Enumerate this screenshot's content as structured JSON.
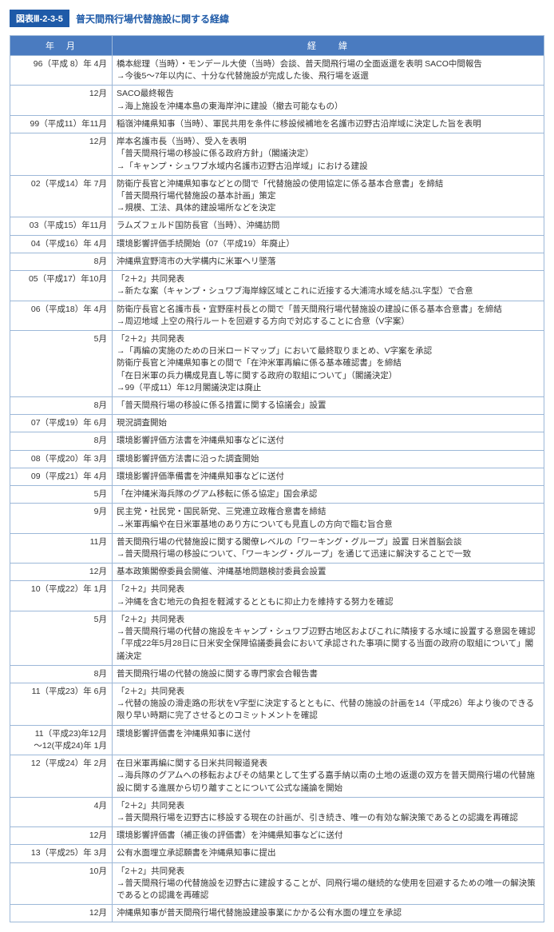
{
  "title_badge": "図表Ⅲ-2-3-5",
  "title_text": "普天間飛行場代替施設に関する経緯",
  "headers": {
    "date": "年　月",
    "content": "経　　緯"
  },
  "rows": [
    {
      "date": "96（平成 8）年 4月",
      "lines": [
        "橋本総理（当時）・モンデール大使（当時）会談、普天間飛行場の全面返還を表明 SACO中間報告",
        "→今後5～7年以内に、十分な代替施設が完成した後、飛行場を返還"
      ]
    },
    {
      "date": "12月",
      "lines": [
        "SACO最終報告",
        "→海上施設を沖縄本島の東海岸沖に建設（撤去可能なもの）"
      ]
    },
    {
      "date": "99（平成11）年11月",
      "lines": [
        "稲嶺沖縄県知事（当時）、軍民共用を条件に移設候補地を名護市辺野古沿岸域に決定した旨を表明"
      ]
    },
    {
      "date": "12月",
      "lines": [
        "岸本名護市長（当時）、受入を表明",
        "「普天間飛行場の移設に係る政府方針」（閣議決定）",
        "→「キャンプ・シュワブ水域内名護市辺野古沿岸域」における建設"
      ]
    },
    {
      "date": "02（平成14）年 7月",
      "lines": [
        "防衛庁長官と沖縄県知事などとの間で「代替施設の使用協定に係る基本合意書」を締結",
        "「普天間飛行場代替施設の基本計画」策定",
        "→規模、工法、具体的建設場所などを決定"
      ]
    },
    {
      "date": "03（平成15）年11月",
      "lines": [
        "ラムズフェルド国防長官（当時）、沖縄訪問"
      ]
    },
    {
      "date": "04（平成16）年 4月",
      "lines": [
        "環境影響評価手続開始（07（平成19）年廃止）"
      ]
    },
    {
      "date": "8月",
      "lines": [
        "沖縄県宜野湾市の大学構内に米軍ヘリ墜落"
      ]
    },
    {
      "date": "05（平成17）年10月",
      "lines": [
        "「2＋2」共同発表",
        "→新たな案（キャンプ・シュワブ海岸線区域とこれに近接する大浦湾水域を結ぶL字型）で合意"
      ]
    },
    {
      "date": "06（平成18）年 4月",
      "lines": [
        "防衛庁長官と名護市長・宜野座村長との間で「普天間飛行場代替施設の建設に係る基本合意書」を締結",
        "→周辺地域 上空の飛行ルートを回避する方向で対応することに合意（V字案）"
      ]
    },
    {
      "date": "5月",
      "lines": [
        "「2＋2」共同発表",
        "→「再編の実施のための日米ロードマップ」において最終取りまとめ、V字案を承認",
        "防衛庁長官と沖縄県知事との間で「在沖米軍再編に係る基本確認書」を締結",
        "「在日米軍の兵力構成見直し等に関する政府の取組について」（閣議決定）",
        "→99（平成11）年12月閣議決定は廃止"
      ]
    },
    {
      "date": "8月",
      "lines": [
        "「普天間飛行場の移設に係る措置に関する協議会」設置"
      ]
    },
    {
      "date": "07（平成19）年 6月",
      "lines": [
        "現況調査開始"
      ]
    },
    {
      "date": "8月",
      "lines": [
        "環境影響評価方法書を沖縄県知事などに送付"
      ]
    },
    {
      "date": "08（平成20）年 3月",
      "lines": [
        "環境影響評価方法書に沿った調査開始"
      ]
    },
    {
      "date": "09（平成21）年 4月",
      "lines": [
        "環境影響評価準備書を沖縄県知事などに送付"
      ]
    },
    {
      "date": "5月",
      "lines": [
        "「在沖縄米海兵隊のグアム移転に係る協定」国会承認"
      ]
    },
    {
      "date": "9月",
      "lines": [
        "民主党・社民党・国民新党、三党連立政権合意書を締結",
        "→米軍再編や在日米軍基地のあり方についても見直しの方向で臨む旨合意"
      ]
    },
    {
      "date": "11月",
      "lines": [
        "普天間飛行場の代替施設に関する閣僚レベルの「ワーキング・グループ」設置 日米首脳会談",
        "→普天間飛行場の移設について、「ワーキング・グループ」を通じて迅速に解決することで一致"
      ]
    },
    {
      "date": "12月",
      "lines": [
        "基本政策閣僚委員会開催、沖縄基地問題検討委員会設置"
      ]
    },
    {
      "date": "10（平成22）年 1月",
      "lines": [
        "「2＋2」共同発表",
        "→沖縄を含む地元の負担を軽減するとともに抑止力を維持する努力を確認"
      ]
    },
    {
      "date": "5月",
      "lines": [
        "「2＋2」共同発表",
        "→普天間飛行場の代替の施設をキャンプ・シュワブ辺野古地区およびこれに隣接する水域に設置する意図を確認",
        "「平成22年5月28日に日米安全保障協議委員会において承認された事項に関する当面の政府の取組について」閣議決定"
      ]
    },
    {
      "date": "8月",
      "lines": [
        "普天間飛行場の代替の施設に関する専門家会合報告書"
      ]
    },
    {
      "date": "11（平成23）年 6月",
      "lines": [
        "「2＋2」共同発表",
        "→代替の施設の滑走路の形状をV字型に決定するとともに、代替の施設の計画を14（平成26）年より後のできる限り早い時期に完了させるとのコミットメントを確認"
      ]
    },
    {
      "date": "11（平成23)年12月\n～12(平成24)年 1月",
      "lines": [
        "環境影響評価書を沖縄県知事に送付"
      ]
    },
    {
      "date": "12（平成24）年 2月",
      "lines": [
        "在日米軍再編に関する日米共同報道発表",
        "→海兵隊のグアムへの移転およびその結果として生ずる嘉手納以南の土地の返還の双方を普天間飛行場の代替施設に関する進展から切り離すことについて公式な議論を開始"
      ]
    },
    {
      "date": "4月",
      "lines": [
        "「2＋2」共同発表",
        "→普天間飛行場を辺野古に移設する現在の計画が、引き続き、唯一の有効な解決策であるとの認識を再確認"
      ]
    },
    {
      "date": "12月",
      "lines": [
        "環境影響評価書（補正後の評価書）を沖縄県知事などに送付"
      ]
    },
    {
      "date": "13（平成25）年 3月",
      "lines": [
        "公有水面埋立承認願書を沖縄県知事に提出"
      ]
    },
    {
      "date": "10月",
      "lines": [
        "「2＋2」共同発表",
        "→普天間飛行場の代替施設を辺野古に建設することが、同飛行場の継続的な使用を回避するための唯一の解決策であるとの認識を再確認"
      ]
    },
    {
      "date": "12月",
      "lines": [
        "沖縄県知事が普天間飛行場代替施設建設事業にかかる公有水面の埋立を承認"
      ]
    }
  ]
}
